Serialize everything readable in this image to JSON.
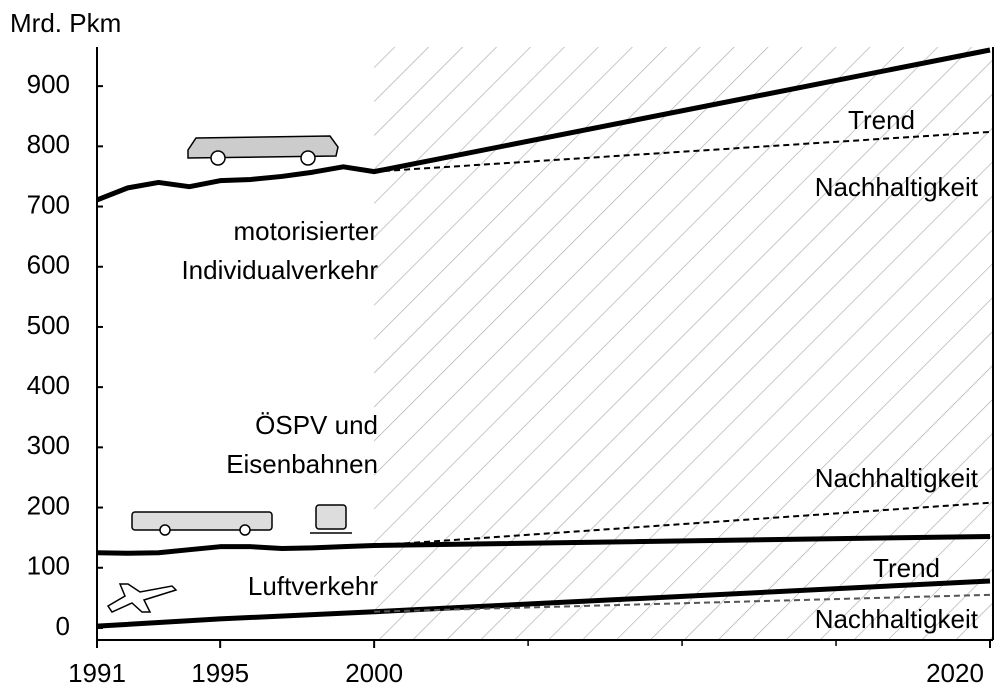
{
  "chart_data": {
    "type": "line",
    "ylabel": "Mrd. Pkm",
    "xlim": [
      1991,
      2020
    ],
    "ylim": [
      -20,
      965
    ],
    "xticks": [
      1991,
      1995,
      2000,
      2020
    ],
    "xminor": [
      2005,
      2010,
      2015
    ],
    "yticks": [
      0,
      100,
      200,
      300,
      400,
      500,
      600,
      700,
      800,
      900
    ],
    "forecast_hatch": true,
    "series": [
      {
        "color": "#000000",
        "style": "solid",
        "x": [
          1991,
          1992,
          1993,
          1994,
          1995,
          1996,
          1997,
          1998,
          1999,
          2000,
          2020
        ],
        "values": [
          711,
          731,
          740,
          733,
          743,
          745,
          750,
          757,
          766,
          758,
          960
        ]
      },
      {
        "color": "#000000",
        "style": "dashed",
        "x": [
          2000,
          2020
        ],
        "values": [
          758,
          824
        ]
      },
      {
        "color": "#000000",
        "style": "solid",
        "x": [
          1991,
          1992,
          1993,
          1994,
          1995,
          1996,
          1997,
          1998,
          1999,
          2000,
          2020
        ],
        "values": [
          125,
          124,
          125,
          130,
          135,
          135,
          132,
          133,
          135,
          137,
          152
        ]
      },
      {
        "color": "#000000",
        "style": "dashed",
        "x": [
          2000,
          2020
        ],
        "values": [
          137,
          208
        ]
      },
      {
        "color": "#000000",
        "style": "solid",
        "x": [
          1991,
          1995,
          2000,
          2020
        ],
        "values": [
          3,
          15,
          27,
          78
        ]
      },
      {
        "color": "#555555",
        "style": "dashed",
        "x": [
          2000,
          2020
        ],
        "values": [
          27,
          55
        ]
      }
    ],
    "annotations": [
      "Trend",
      "Nachhaltigkeit",
      "motorisierter",
      "Individualverkehr",
      "ÖSPV und",
      "Eisenbahnen",
      "Nachhaltigkeit",
      "Luftverkehr",
      "Trend",
      "Nachhaltigkeit"
    ]
  }
}
